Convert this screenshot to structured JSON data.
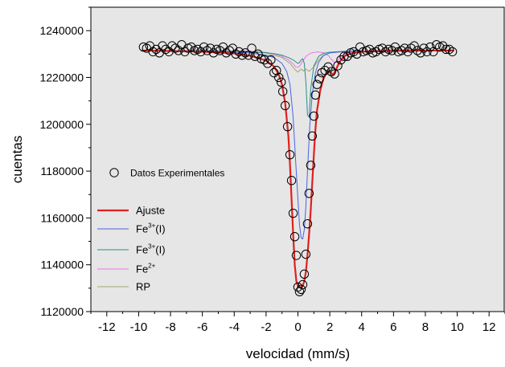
{
  "chart_data": {
    "type": "scatter",
    "xlabel": "velocidad (mm/s)",
    "ylabel": "cuentas",
    "xlim": [
      -13,
      13
    ],
    "ylim": [
      1120000,
      1250000
    ],
    "x_ticks": [
      -12,
      -10,
      -8,
      -6,
      -4,
      -2,
      0,
      2,
      4,
      6,
      8,
      10,
      12
    ],
    "y_ticks": [
      1120000,
      1140000,
      1160000,
      1180000,
      1200000,
      1220000,
      1240000
    ],
    "grid": false,
    "legend_position": "left",
    "legend": [
      {
        "label": "Datos Experimentales",
        "kind": "marker"
      },
      {
        "label": "Ajuste",
        "kind": "line",
        "series_index": 0
      },
      {
        "label": "Fe",
        "sup": "3+",
        "suffix": "(I)",
        "kind": "line",
        "series_index": 1
      },
      {
        "label": "Fe",
        "sup": "3+",
        "suffix": "(I)",
        "kind": "line",
        "series_index": 2
      },
      {
        "label": "Fe",
        "sup": "2+",
        "suffix": "",
        "kind": "line",
        "series_index": 3
      },
      {
        "label": "RP",
        "kind": "line",
        "series_index": 4
      }
    ],
    "series": [
      {
        "name": "Ajuste",
        "color": "#e02020",
        "width": 2.2,
        "x": [
          -9.8,
          -8,
          -6,
          -4,
          -3,
          -2,
          -1.5,
          -1.2,
          -1.0,
          -0.8,
          -0.6,
          -0.5,
          -0.4,
          -0.3,
          -0.2,
          -0.1,
          0.0,
          0.1,
          0.2,
          0.3,
          0.4,
          0.5,
          0.6,
          0.7,
          0.8,
          0.9,
          1.0,
          1.1,
          1.2,
          1.4,
          1.6,
          1.8,
          2.0,
          2.2,
          2.4,
          2.6,
          2.8,
          3.0,
          3.5,
          4,
          6,
          8,
          9.8
        ],
        "y": [
          1231500,
          1231300,
          1231000,
          1230300,
          1229300,
          1227200,
          1224700,
          1221200,
          1217000,
          1209000,
          1195000,
          1183000,
          1168000,
          1153000,
          1140000,
          1133000,
          1131000,
          1130500,
          1130300,
          1131000,
          1133000,
          1137000,
          1144000,
          1153000,
          1163000,
          1175000,
          1187000,
          1198000,
          1206000,
          1214500,
          1219500,
          1222000,
          1222500,
          1221000,
          1223500,
          1226500,
          1228300,
          1229500,
          1230500,
          1231000,
          1231400,
          1231500,
          1231500
        ]
      },
      {
        "name": "Fe3+(I)",
        "color": "#4a64e0",
        "width": 1,
        "x": [
          -9.8,
          -6,
          -3,
          -2,
          -1.5,
          -1,
          -0.7,
          -0.5,
          -0.3,
          -0.15,
          0.0,
          0.1,
          0.2,
          0.3,
          0.4,
          0.5,
          0.6,
          0.75,
          0.9,
          1.1,
          1.3,
          1.6,
          2.0,
          3,
          6,
          9.8
        ],
        "y": [
          1231500,
          1231300,
          1230500,
          1229500,
          1228500,
          1226000,
          1222500,
          1217000,
          1203000,
          1185000,
          1168000,
          1157000,
          1151500,
          1151000,
          1155000,
          1165000,
          1180000,
          1200000,
          1213000,
          1222000,
          1226500,
          1229300,
          1230500,
          1231200,
          1231400,
          1231500
        ]
      },
      {
        "name": "Fe3+(I)",
        "color": "#2a8f86",
        "width": 1,
        "x": [
          -9.8,
          -6,
          -3,
          -2,
          -1.5,
          -1,
          -0.6,
          -0.3,
          -0.1,
          0.0,
          0.1,
          0.2,
          0.3,
          0.4,
          0.5,
          0.6,
          0.7,
          0.8,
          1.0,
          1.3,
          1.6,
          2,
          3,
          6,
          9.8
        ],
        "y": [
          1231500,
          1231400,
          1231000,
          1230600,
          1230200,
          1229500,
          1228500,
          1227500,
          1226500,
          1226000,
          1226400,
          1227500,
          1228000,
          1226000,
          1218000,
          1204000,
          1203000,
          1215000,
          1225000,
          1229000,
          1230300,
          1230800,
          1231200,
          1231400,
          1231500
        ]
      },
      {
        "name": "Fe2+",
        "color": "#f070f0",
        "width": 1,
        "x": [
          -9.8,
          -6,
          -3,
          -2,
          -1.5,
          -1,
          -0.6,
          -0.3,
          -0.15,
          0.0,
          0.15,
          0.3,
          0.5,
          0.8,
          1.2,
          1.6,
          1.9,
          2.1,
          2.3,
          2.5,
          2.7,
          3.0,
          3.5,
          4,
          6,
          9.8
        ],
        "y": [
          1231500,
          1231450,
          1231200,
          1230700,
          1230000,
          1229000,
          1227500,
          1225800,
          1224600,
          1224300,
          1225200,
          1227000,
          1229000,
          1230400,
          1230900,
          1230600,
          1229400,
          1227800,
          1226400,
          1227300,
          1229000,
          1230300,
          1231000,
          1231300,
          1231450,
          1231500
        ]
      },
      {
        "name": "RP",
        "color": "#a0a870",
        "width": 1,
        "x": [
          -9.8,
          -6,
          -3,
          -2,
          -1,
          -0.5,
          -0.2,
          0.0,
          0.2,
          0.35,
          0.5,
          0.7,
          1.0,
          1.3,
          1.6,
          2,
          3,
          6,
          9.8
        ],
        "y": [
          1231500,
          1231400,
          1231000,
          1230400,
          1228500,
          1226000,
          1223500,
          1222300,
          1223600,
          1222800,
          1223600,
          1222600,
          1224500,
          1227500,
          1229500,
          1230500,
          1231100,
          1231400,
          1231500
        ]
      }
    ],
    "points": {
      "x": [
        -9.7,
        -9.5,
        -9.3,
        -9.1,
        -8.9,
        -8.7,
        -8.5,
        -8.3,
        -8.1,
        -7.9,
        -7.7,
        -7.5,
        -7.3,
        -7.1,
        -6.9,
        -6.7,
        -6.5,
        -6.3,
        -6.1,
        -5.9,
        -5.7,
        -5.5,
        -5.3,
        -5.1,
        -4.9,
        -4.7,
        -4.5,
        -4.3,
        -4.1,
        -3.9,
        -3.7,
        -3.5,
        -3.3,
        -3.1,
        -2.9,
        -2.7,
        -2.5,
        -2.3,
        -2.1,
        -1.9,
        -1.7,
        -1.5,
        -1.35,
        -1.2,
        -1.05,
        -0.95,
        -0.8,
        -0.65,
        -0.5,
        -0.4,
        -0.3,
        -0.2,
        -0.1,
        0.0,
        0.1,
        0.2,
        0.3,
        0.4,
        0.5,
        0.6,
        0.7,
        0.8,
        0.9,
        1.0,
        1.1,
        1.2,
        1.35,
        1.5,
        1.7,
        1.9,
        2.1,
        2.3,
        2.5,
        2.7,
        2.9,
        3.1,
        3.3,
        3.5,
        3.7,
        3.9,
        4.1,
        4.3,
        4.5,
        4.7,
        4.9,
        5.1,
        5.3,
        5.5,
        5.7,
        5.9,
        6.1,
        6.3,
        6.5,
        6.7,
        6.9,
        7.1,
        7.3,
        7.5,
        7.7,
        7.9,
        8.1,
        8.3,
        8.5,
        8.7,
        8.9,
        9.1,
        9.3,
        9.5,
        9.7
      ],
      "y": [
        1233000,
        1232500,
        1233500,
        1231000,
        1232000,
        1230500,
        1233500,
        1232000,
        1231000,
        1233500,
        1232500,
        1231500,
        1234000,
        1231000,
        1232500,
        1233000,
        1231500,
        1232000,
        1231000,
        1233000,
        1231500,
        1232500,
        1230500,
        1232000,
        1231500,
        1233000,
        1230500,
        1231500,
        1232500,
        1230000,
        1231000,
        1229500,
        1230500,
        1229500,
        1232500,
        1229000,
        1230000,
        1228000,
        1227500,
        1226000,
        1227500,
        1222000,
        1223000,
        1220000,
        1218000,
        1214000,
        1208000,
        1199000,
        1187000,
        1176000,
        1162000,
        1152000,
        1144000,
        1130500,
        1128500,
        1129500,
        1131500,
        1136000,
        1144500,
        1157500,
        1170500,
        1182500,
        1195000,
        1203500,
        1212500,
        1217000,
        1219500,
        1222000,
        1223000,
        1224500,
        1222500,
        1221500,
        1225000,
        1227500,
        1229000,
        1229000,
        1230500,
        1231000,
        1230000,
        1233000,
        1231000,
        1231500,
        1232000,
        1230500,
        1231000,
        1232000,
        1232500,
        1231000,
        1232000,
        1231500,
        1233000,
        1231000,
        1231500,
        1232500,
        1231000,
        1232500,
        1233500,
        1231500,
        1230500,
        1232500,
        1231000,
        1233000,
        1231000,
        1234000,
        1233000,
        1233500,
        1232000,
        1232000,
        1231000
      ]
    }
  }
}
